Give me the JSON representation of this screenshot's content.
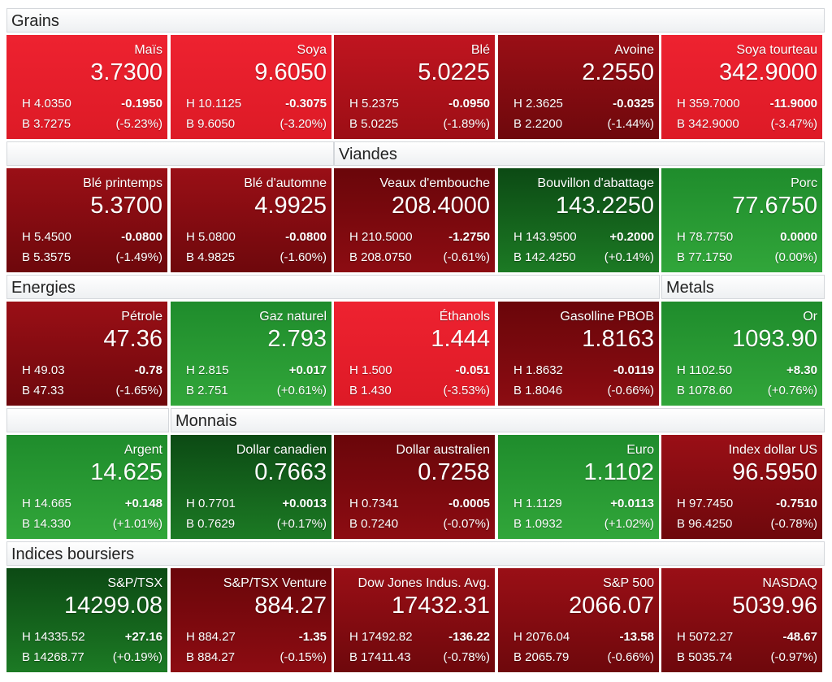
{
  "sections": {
    "grains": "Grains",
    "viandes": "Viandes",
    "energies": "Energies",
    "metals": "Metals",
    "monnais": "Monnais",
    "indices": "Indices boursiers"
  },
  "tiles": [
    {
      "name": "Maïs",
      "price": "3.7300",
      "hi": "H 4.0350",
      "lo": "B 3.7275",
      "chg": "-0.1950",
      "pct": "(-5.23%)",
      "color": "#e31b27"
    },
    {
      "name": "Soya",
      "price": "9.6050",
      "hi": "H 10.1125",
      "lo": "B 9.6050",
      "chg": "-0.3075",
      "pct": "(-3.20%)",
      "color": "#e31b27"
    },
    {
      "name": "Blé",
      "price": "5.0225",
      "hi": "H 5.2375",
      "lo": "B 5.0225",
      "chg": "-0.0950",
      "pct": "(-1.89%)",
      "color": "#b5131c"
    },
    {
      "name": "Avoine",
      "price": "2.2550",
      "hi": "H 2.3625",
      "lo": "B 2.2200",
      "chg": "-0.0325",
      "pct": "(-1.44%)",
      "color": "#9a0f16"
    },
    {
      "name": "Soya tourteau",
      "price": "342.9000",
      "hi": "H 359.7000",
      "lo": "B 342.9000",
      "chg": "-11.9000",
      "pct": "(-3.47%)",
      "color": "#e31b27"
    },
    {
      "name": "Blé printemps",
      "price": "5.3700",
      "hi": "H 5.4500",
      "lo": "B 5.3575",
      "chg": "-0.0800",
      "pct": "(-1.49%)",
      "color": "#9a0f16"
    },
    {
      "name": "Blé d'automne",
      "price": "4.9925",
      "hi": "H 5.0800",
      "lo": "B 4.9825",
      "chg": "-0.0800",
      "pct": "(-1.60%)",
      "color": "#9a0f16"
    },
    {
      "name": "Veaux d'embouche",
      "price": "208.4000",
      "hi": "H 210.5000",
      "lo": "B 208.0750",
      "chg": "-1.2750",
      "pct": "(-0.61%)",
      "color": "#6e080c"
    },
    {
      "name": "Bouvillon d'abattage",
      "price": "143.2250",
      "hi": "H 143.9500",
      "lo": "B 142.4250",
      "chg": "+0.2000",
      "pct": "(+0.14%)",
      "color": "#1c7a24"
    },
    {
      "name": "Porc",
      "price": "77.6750",
      "hi": "H 78.7750",
      "lo": "B 77.1750",
      "chg": "0.0000",
      "pct": "(0.00%)",
      "color": "#2a9a34"
    },
    {
      "name": "Pétrole",
      "price": "47.36",
      "hi": "H 49.03",
      "lo": "B 47.33",
      "chg": "-0.78",
      "pct": "(-1.65%)",
      "color": "#9a0f16"
    },
    {
      "name": "Gaz naturel",
      "price": "2.793",
      "hi": "H 2.815",
      "lo": "B 2.751",
      "chg": "+0.017",
      "pct": "(+0.61%)",
      "color": "#2a9a34"
    },
    {
      "name": "Éthanols",
      "price": "1.444",
      "hi": "H 1.500",
      "lo": "B 1.430",
      "chg": "-0.051",
      "pct": "(-3.53%)",
      "color": "#e31b27"
    },
    {
      "name": "Gasolline PBOB",
      "price": "1.8163",
      "hi": "H 1.8632",
      "lo": "B 1.8046",
      "chg": "-0.0119",
      "pct": "(-0.66%)",
      "color": "#6e080c"
    },
    {
      "name": "Or",
      "price": "1093.90",
      "hi": "H 1102.50",
      "lo": "B 1078.60",
      "chg": "+8.30",
      "pct": "(+0.76%)",
      "color": "#2a9a34"
    },
    {
      "name": "Argent",
      "price": "14.625",
      "hi": "H 14.665",
      "lo": "B 14.330",
      "chg": "+0.148",
      "pct": "(+1.01%)",
      "color": "#2a9a34"
    },
    {
      "name": "Dollar canadien",
      "price": "0.7663",
      "hi": "H 0.7701",
      "lo": "B 0.7629",
      "chg": "+0.0013",
      "pct": "(+0.17%)",
      "color": "#1c7a24"
    },
    {
      "name": "Dollar australien",
      "price": "0.7258",
      "hi": "H 0.7341",
      "lo": "B 0.7240",
      "chg": "-0.0005",
      "pct": "(-0.07%)",
      "color": "#6e080c"
    },
    {
      "name": "Euro",
      "price": "1.1102",
      "hi": "H 1.1129",
      "lo": "B 1.0932",
      "chg": "+0.0113",
      "pct": "(+1.02%)",
      "color": "#2a9a34"
    },
    {
      "name": "Index dollar US",
      "price": "96.5950",
      "hi": "H 97.7450",
      "lo": "B 96.4250",
      "chg": "-0.7510",
      "pct": "(-0.78%)",
      "color": "#9a0f16"
    },
    {
      "name": "S&P/TSX",
      "price": "14299.08",
      "hi": "H 14335.52",
      "lo": "B 14268.77",
      "chg": "+27.16",
      "pct": "(+0.19%)",
      "color": "#1c7a24"
    },
    {
      "name": "S&P/TSX Venture",
      "price": "884.27",
      "hi": "H 884.27",
      "lo": "B 884.27",
      "chg": "-1.35",
      "pct": "(-0.15%)",
      "color": "#6e080c"
    },
    {
      "name": "Dow Jones Indus. Avg.",
      "price": "17432.31",
      "hi": "H 17492.82",
      "lo": "B 17411.43",
      "chg": "-136.22",
      "pct": "(-0.78%)",
      "color": "#9a0f16"
    },
    {
      "name": "S&P 500",
      "price": "2066.07",
      "hi": "H 2076.04",
      "lo": "B 2065.79",
      "chg": "-13.58",
      "pct": "(-0.66%)",
      "color": "#9a0f16"
    },
    {
      "name": "NASDAQ",
      "price": "5039.96",
      "hi": "H 5072.27",
      "lo": "B 5035.74",
      "chg": "-48.67",
      "pct": "(-0.97%)",
      "color": "#9a0f16"
    }
  ]
}
